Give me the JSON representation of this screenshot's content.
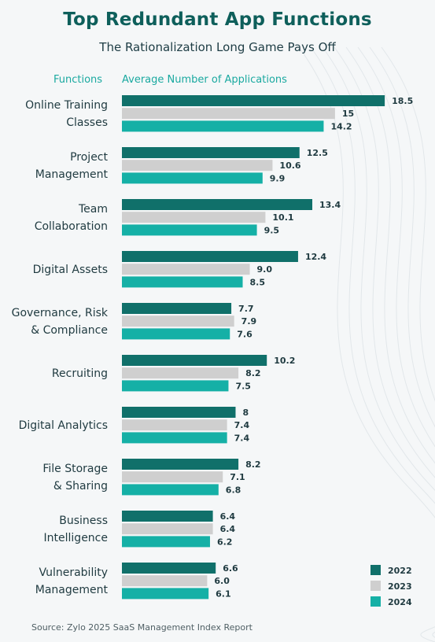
{
  "title": "Top Redundant App Functions",
  "subtitle": "The Rationalization Long Game Pays Off",
  "header_functions": "Functions",
  "header_average": "Average Number of Applications",
  "source": "Source: Zylo 2025 SaaS Management Index Report",
  "colors": {
    "2022": "#10706a",
    "2023": "#cfcfcf",
    "2024": "#15b0a6"
  },
  "chart_data": {
    "type": "bar",
    "orientation": "horizontal",
    "title": "Top Redundant App Functions",
    "subtitle": "The Rationalization Long Game Pays Off",
    "xlabel": "Average Number of Applications",
    "ylabel": "Functions",
    "legend_position": "bottom-right",
    "grid": false,
    "categories": [
      [
        "Online Training",
        "Classes"
      ],
      [
        "Project",
        "Management"
      ],
      [
        "Team",
        "Collaboration"
      ],
      [
        "Digital Assets"
      ],
      [
        "Governance, Risk",
        "& Compliance"
      ],
      [
        "Recruiting"
      ],
      [
        "Digital Analytics"
      ],
      [
        "File Storage",
        "& Sharing"
      ],
      [
        "Business",
        "Intelligence"
      ],
      [
        "Vulnerability",
        "Management"
      ]
    ],
    "series": [
      {
        "name": "2022",
        "values": [
          18.5,
          12.5,
          13.4,
          12.4,
          7.7,
          10.2,
          8,
          8.2,
          6.4,
          6.6
        ],
        "labels": [
          "18.5",
          "12.5",
          "13.4",
          "12.4",
          "7.7",
          "10.2",
          "8",
          "8.2",
          "6.4",
          "6.6"
        ]
      },
      {
        "name": "2023",
        "values": [
          15,
          10.6,
          10.1,
          9.0,
          7.9,
          8.2,
          7.4,
          7.1,
          6.4,
          6.0
        ],
        "labels": [
          "15",
          "10.6",
          "10.1",
          "9.0",
          "7.9",
          "8.2",
          "7.4",
          "7.1",
          "6.4",
          "6.0"
        ]
      },
      {
        "name": "2024",
        "values": [
          14.2,
          9.9,
          9.5,
          8.5,
          7.6,
          7.5,
          7.4,
          6.8,
          6.2,
          6.1
        ],
        "labels": [
          "14.2",
          "9.9",
          "9.5",
          "8.5",
          "7.6",
          "7.5",
          "7.4",
          "6.8",
          "6.2",
          "6.1"
        ]
      }
    ]
  }
}
